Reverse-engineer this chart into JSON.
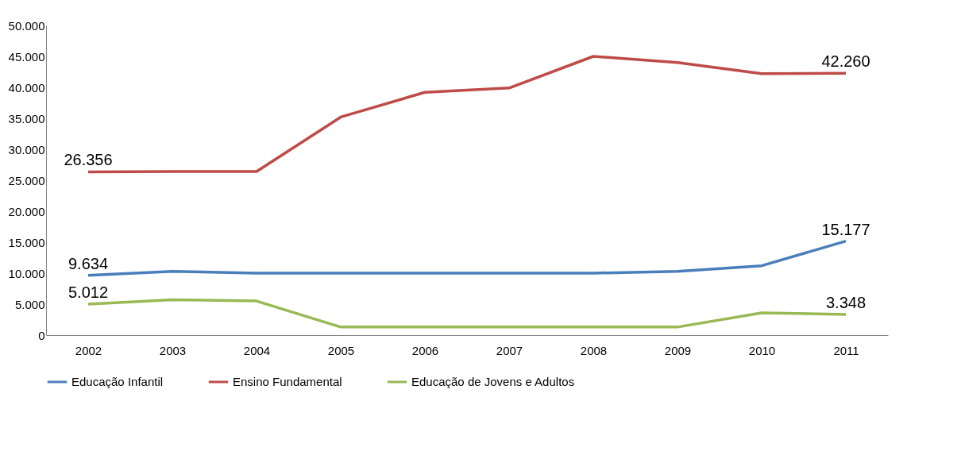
{
  "chart_data": {
    "type": "line",
    "categories": [
      "2002",
      "2003",
      "2004",
      "2005",
      "2006",
      "2007",
      "2008",
      "2009",
      "2010",
      "2011"
    ],
    "series": [
      {
        "name": "Educação Infantil",
        "color": "#4a7ebb",
        "values": [
          9634,
          10300,
          10000,
          10000,
          10000,
          10000,
          10000,
          10300,
          11200,
          15177
        ],
        "value_labels": [
          "9.634",
          null,
          null,
          null,
          null,
          null,
          null,
          null,
          null,
          "15.177"
        ]
      },
      {
        "name": "Ensino Fundamental",
        "color": "#be4b48",
        "values": [
          26356,
          26400,
          26400,
          35200,
          39200,
          39900,
          45000,
          44000,
          42200,
          42260
        ],
        "value_labels": [
          "26.356",
          null,
          null,
          null,
          null,
          null,
          null,
          null,
          null,
          "42.260"
        ]
      },
      {
        "name": "Educação de Jovens e Adultos",
        "color": "#98b954",
        "values": [
          5012,
          5700,
          5500,
          1300,
          1300,
          1300,
          1300,
          1300,
          3600,
          3348
        ],
        "value_labels": [
          "5.012",
          null,
          null,
          null,
          null,
          null,
          null,
          null,
          null,
          "3.348"
        ]
      }
    ],
    "ylim": [
      0,
      50000
    ],
    "yticks": [
      {
        "value": 0,
        "label": "0"
      },
      {
        "value": 5000,
        "label": "5.000"
      },
      {
        "value": 10000,
        "label": "10.000"
      },
      {
        "value": 15000,
        "label": "15.000"
      },
      {
        "value": 20000,
        "label": "20.000"
      },
      {
        "value": 25000,
        "label": "25.000"
      },
      {
        "value": 30000,
        "label": "30.000"
      },
      {
        "value": 35000,
        "label": "35.000"
      },
      {
        "value": 40000,
        "label": "40.000"
      },
      {
        "value": 45000,
        "label": "45.000"
      },
      {
        "value": 50000,
        "label": "50.000"
      }
    ],
    "grid": false,
    "legend": "bottom",
    "marker": "none",
    "line_style": "solid"
  }
}
